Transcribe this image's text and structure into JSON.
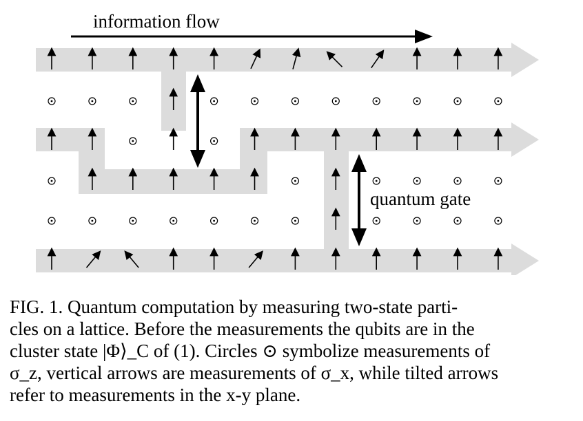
{
  "figure": {
    "flow_label": "information flow",
    "gate_label": "quantum gate",
    "lattice": {
      "columns": 12,
      "rows": [
        "ZZZZZTTXTZZZ",
        "MMMZMMMMMMMM",
        "ZZMZMZZZZZZZ",
        "MZZZZZMZMMMM",
        "MMMMMMMZMMMM",
        "ZRLZZRZZZZZZ"
      ],
      "tilted": {
        "0-5": 25,
        "0-6": 15,
        "0-7": -45,
        "0-8": 35,
        "5-1": 40,
        "5-2": -40,
        "5-5": 40
      },
      "legend": {
        "M": "sigma_z measurement",
        "Z": "sigma_x measurement",
        "T/X/R/L": "x-y plane measurement"
      }
    }
  },
  "caption": {
    "lines": [
      "FIG. 1.   Quantum computation by measuring two-state parti-",
      "cles on a lattice. Before the measurements the qubits are in the",
      "cluster state |Φ⟩_C of (1). Circles ⊙ symbolize measurements of",
      "σ_z, vertical arrows are measurements of σ_x, while tilted arrows",
      "refer to measurements in the x-y plane."
    ]
  }
}
